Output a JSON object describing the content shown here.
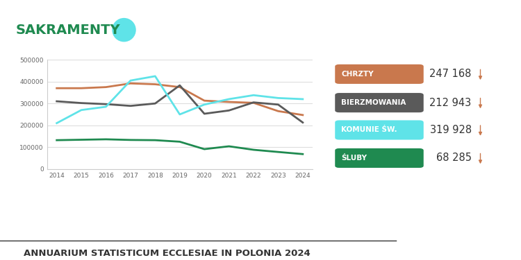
{
  "chart_data": {
    "type": "line",
    "title": "SAKRAMENTY",
    "footer": "ANNUARIUM STATISTICUM ECCLESIAE IN POLONIA 2024",
    "x": [
      2014,
      2015,
      2016,
      2017,
      2018,
      2019,
      2020,
      2021,
      2022,
      2023,
      2024
    ],
    "xlim": [
      2013.6,
      2024.4
    ],
    "xticks": [
      2014,
      2015,
      2016,
      2017,
      2018,
      2019,
      2020,
      2021,
      2022,
      2023,
      2024
    ],
    "ylim": [
      0,
      500000
    ],
    "yticks": [
      0,
      100000,
      200000,
      300000,
      400000,
      500000
    ],
    "grid": true,
    "series": [
      {
        "name": "CHRZTY",
        "color": "#c9784d",
        "values": [
          370000,
          370000,
          375000,
          392000,
          388000,
          375000,
          313000,
          307000,
          303000,
          265000,
          247168
        ],
        "value_labels": [
          null,
          null,
          null,
          null,
          null,
          null,
          null,
          null,
          null,
          null,
          "247 168"
        ]
      },
      {
        "name": "BIERZMOWANIA",
        "color": "#5a5a5a",
        "values": [
          310000,
          302000,
          297000,
          289000,
          300000,
          383000,
          253000,
          268000,
          305000,
          295000,
          212943
        ],
        "value_labels": [
          null,
          null,
          null,
          null,
          null,
          null,
          null,
          null,
          null,
          null,
          "212 943"
        ]
      },
      {
        "name": "KOMUNIE ŚW.",
        "color": "#5fe3e8",
        "values": [
          210000,
          270000,
          285000,
          405000,
          425000,
          250000,
          295000,
          320000,
          338000,
          325000,
          319928
        ],
        "value_labels": [
          null,
          null,
          null,
          null,
          null,
          null,
          null,
          null,
          null,
          null,
          "319 928"
        ]
      },
      {
        "name": "ŚLUBY",
        "color": "#1f8a50",
        "values": [
          132000,
          134000,
          136000,
          133000,
          132000,
          125000,
          91000,
          104000,
          88000,
          78000,
          68285
        ],
        "value_labels": [
          null,
          null,
          null,
          null,
          null,
          null,
          null,
          null,
          null,
          null,
          "68 285"
        ]
      }
    ]
  }
}
